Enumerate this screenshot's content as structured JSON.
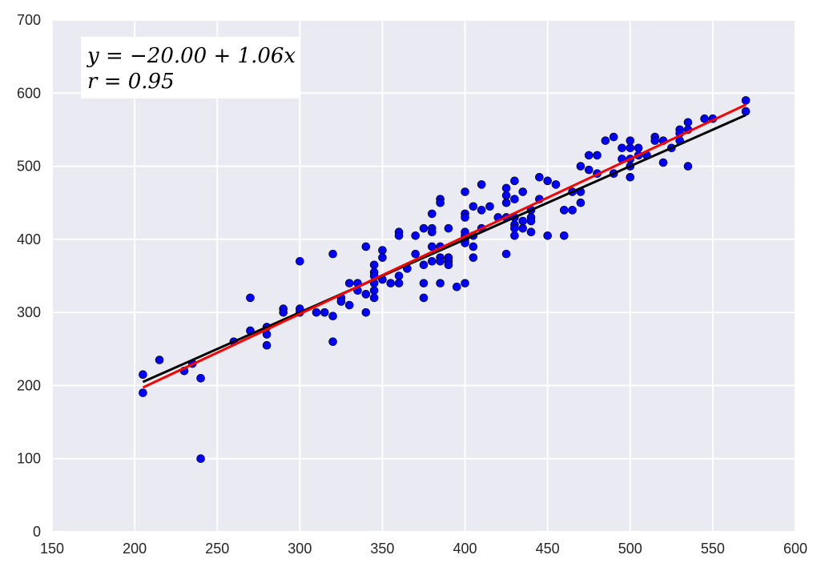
{
  "chart_data": {
    "type": "scatter",
    "title": "",
    "xlabel": "",
    "ylabel": "",
    "xlim": [
      150,
      600
    ],
    "ylim": [
      0,
      700
    ],
    "grid": true,
    "xticks": [
      150,
      200,
      250,
      300,
      350,
      400,
      450,
      500,
      550,
      600
    ],
    "yticks": [
      0,
      100,
      200,
      300,
      400,
      500,
      600,
      700
    ],
    "annotation": {
      "line1": "y = −20.00 + 1.06x",
      "line2": "r = 0.95",
      "position": "top-left"
    },
    "colors": {
      "points": "#0000ff",
      "fit_line": "#ff0000",
      "reference_line": "#000000",
      "background": "#eaeaf2",
      "grid": "#ffffff"
    },
    "series": [
      {
        "type": "scatter",
        "points": [
          [
            205,
            215
          ],
          [
            205,
            190
          ],
          [
            215,
            235
          ],
          [
            230,
            220
          ],
          [
            235,
            230
          ],
          [
            240,
            210
          ],
          [
            240,
            100
          ],
          [
            260,
            260
          ],
          [
            270,
            320
          ],
          [
            270,
            275
          ],
          [
            280,
            280
          ],
          [
            280,
            270
          ],
          [
            280,
            255
          ],
          [
            290,
            305
          ],
          [
            290,
            300
          ],
          [
            300,
            370
          ],
          [
            300,
            305
          ],
          [
            300,
            300
          ],
          [
            310,
            300
          ],
          [
            315,
            300
          ],
          [
            320,
            380
          ],
          [
            320,
            295
          ],
          [
            320,
            260
          ],
          [
            325,
            320
          ],
          [
            325,
            315
          ],
          [
            330,
            340
          ],
          [
            330,
            310
          ],
          [
            335,
            340
          ],
          [
            335,
            330
          ],
          [
            340,
            390
          ],
          [
            340,
            325
          ],
          [
            340,
            300
          ],
          [
            345,
            365
          ],
          [
            345,
            355
          ],
          [
            345,
            350
          ],
          [
            345,
            340
          ],
          [
            345,
            330
          ],
          [
            345,
            320
          ],
          [
            350,
            385
          ],
          [
            350,
            375
          ],
          [
            350,
            345
          ],
          [
            355,
            340
          ],
          [
            360,
            410
          ],
          [
            360,
            405
          ],
          [
            360,
            350
          ],
          [
            360,
            340
          ],
          [
            365,
            360
          ],
          [
            370,
            405
          ],
          [
            370,
            380
          ],
          [
            375,
            415
          ],
          [
            375,
            365
          ],
          [
            375,
            340
          ],
          [
            375,
            320
          ],
          [
            380,
            435
          ],
          [
            380,
            415
          ],
          [
            380,
            410
          ],
          [
            380,
            390
          ],
          [
            380,
            370
          ],
          [
            385,
            455
          ],
          [
            385,
            450
          ],
          [
            385,
            390
          ],
          [
            385,
            375
          ],
          [
            385,
            370
          ],
          [
            385,
            340
          ],
          [
            390,
            415
          ],
          [
            390,
            375
          ],
          [
            390,
            370
          ],
          [
            390,
            365
          ],
          [
            395,
            335
          ],
          [
            400,
            465
          ],
          [
            400,
            435
          ],
          [
            400,
            430
          ],
          [
            400,
            410
          ],
          [
            400,
            405
          ],
          [
            400,
            400
          ],
          [
            400,
            395
          ],
          [
            400,
            340
          ],
          [
            405,
            445
          ],
          [
            405,
            405
          ],
          [
            405,
            390
          ],
          [
            405,
            375
          ],
          [
            410,
            475
          ],
          [
            410,
            440
          ],
          [
            410,
            415
          ],
          [
            415,
            445
          ],
          [
            420,
            430
          ],
          [
            425,
            470
          ],
          [
            425,
            460
          ],
          [
            425,
            450
          ],
          [
            425,
            430
          ],
          [
            425,
            380
          ],
          [
            430,
            480
          ],
          [
            430,
            455
          ],
          [
            430,
            430
          ],
          [
            430,
            420
          ],
          [
            430,
            415
          ],
          [
            430,
            405
          ],
          [
            435,
            465
          ],
          [
            435,
            425
          ],
          [
            435,
            415
          ],
          [
            440,
            440
          ],
          [
            440,
            430
          ],
          [
            440,
            425
          ],
          [
            440,
            410
          ],
          [
            445,
            485
          ],
          [
            445,
            455
          ],
          [
            450,
            480
          ],
          [
            450,
            405
          ],
          [
            455,
            475
          ],
          [
            460,
            440
          ],
          [
            460,
            405
          ],
          [
            465,
            465
          ],
          [
            465,
            440
          ],
          [
            470,
            500
          ],
          [
            470,
            465
          ],
          [
            470,
            450
          ],
          [
            475,
            515
          ],
          [
            475,
            495
          ],
          [
            480,
            515
          ],
          [
            480,
            490
          ],
          [
            485,
            535
          ],
          [
            490,
            540
          ],
          [
            490,
            490
          ],
          [
            495,
            525
          ],
          [
            495,
            510
          ],
          [
            500,
            535
          ],
          [
            500,
            525
          ],
          [
            500,
            510
          ],
          [
            500,
            500
          ],
          [
            500,
            485
          ],
          [
            505,
            525
          ],
          [
            505,
            515
          ],
          [
            510,
            515
          ],
          [
            515,
            540
          ],
          [
            515,
            535
          ],
          [
            520,
            535
          ],
          [
            520,
            505
          ],
          [
            525,
            525
          ],
          [
            530,
            550
          ],
          [
            530,
            545
          ],
          [
            530,
            535
          ],
          [
            535,
            560
          ],
          [
            535,
            550
          ],
          [
            535,
            500
          ],
          [
            545,
            565
          ],
          [
            550,
            565
          ],
          [
            570,
            590
          ],
          [
            570,
            575
          ]
        ]
      },
      {
        "name": "",
        "type": "line",
        "color": "#ff0000",
        "x": [
          205,
          570
        ],
        "y": [
          197.3,
          584.2
        ]
      },
      {
        "name": "",
        "type": "line",
        "color": "#000000",
        "x": [
          205,
          570
        ],
        "y": [
          205,
          570
        ]
      }
    ]
  }
}
